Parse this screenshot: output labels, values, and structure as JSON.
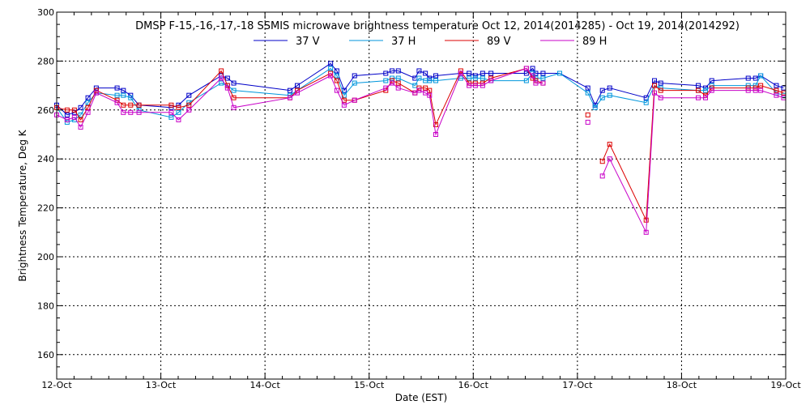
{
  "chart_data": {
    "type": "line",
    "title": "DMSP F-15,-16,-17,-18 SSMIS microwave brightness temperature Oct 12, 2014(2014285) - Oct 19, 2014(2014292)",
    "xlabel": "Date (EST)",
    "ylabel": "Brightness Temperature, Deg K",
    "xlim": [
      0,
      7
    ],
    "ylim": [
      150,
      300
    ],
    "grid": true,
    "legend_position": "top",
    "x_tick_labels": [
      "12-Oct",
      "13-Oct",
      "14-Oct",
      "15-Oct",
      "16-Oct",
      "17-Oct",
      "18-Oct",
      "19-Oct"
    ],
    "y_ticks": [
      160,
      180,
      200,
      220,
      240,
      260,
      280,
      300
    ],
    "series": [
      {
        "name": "37 V",
        "color": "#0000c8",
        "x": [
          0.0,
          0.1,
          0.17,
          0.23,
          0.3,
          0.38,
          0.58,
          0.64,
          0.71,
          0.79,
          1.1,
          1.17,
          1.27,
          1.58,
          1.64,
          1.7,
          2.24,
          2.31,
          2.63,
          2.69,
          2.76,
          2.86,
          3.16,
          3.22,
          3.28,
          3.44,
          3.48,
          3.54,
          3.58,
          3.64,
          3.88,
          3.96,
          4.02,
          4.09,
          4.17,
          4.51,
          4.57,
          4.6,
          4.67,
          4.83,
          5.1,
          5.17,
          5.24,
          5.31,
          5.66,
          5.74,
          5.8,
          6.16,
          6.23,
          6.29,
          6.64,
          6.71,
          6.76,
          6.91,
          6.98
        ],
        "y": [
          262,
          258,
          259,
          261,
          265,
          269,
          269,
          268,
          266,
          262,
          261,
          262,
          266,
          274,
          273,
          271,
          268,
          270,
          279,
          276,
          268,
          274,
          275,
          276,
          276,
          273,
          276,
          275,
          273,
          274,
          275,
          275,
          274,
          275,
          275,
          275,
          277,
          275,
          275,
          275,
          269,
          262,
          268,
          269,
          265,
          272,
          271,
          270,
          269,
          272,
          273,
          273,
          274,
          270,
          269
        ]
      },
      {
        "name": "37 H",
        "color": "#0096dc",
        "x": [
          0.0,
          0.1,
          0.17,
          0.23,
          0.3,
          0.38,
          0.58,
          0.64,
          0.71,
          0.79,
          1.1,
          1.17,
          1.27,
          1.58,
          1.64,
          1.7,
          2.24,
          2.31,
          2.63,
          2.69,
          2.76,
          2.86,
          3.16,
          3.22,
          3.28,
          3.44,
          3.48,
          3.54,
          3.58,
          3.64,
          3.88,
          3.96,
          4.02,
          4.09,
          4.17,
          4.51,
          4.57,
          4.6,
          4.67,
          4.83,
          5.1,
          5.17,
          5.24,
          5.31,
          5.66,
          5.74,
          5.8,
          6.16,
          6.23,
          6.29,
          6.64,
          6.71,
          6.76,
          6.91,
          6.98
        ],
        "y": [
          261,
          255,
          256,
          258,
          263,
          267,
          266,
          266,
          265,
          260,
          257,
          259,
          263,
          271,
          270,
          268,
          266,
          268,
          277,
          274,
          266,
          271,
          272,
          273,
          273,
          270,
          273,
          272,
          272,
          272,
          273,
          273,
          273,
          273,
          272,
          272,
          275,
          273,
          273,
          275,
          267,
          261,
          265,
          266,
          263,
          270,
          269,
          268,
          268,
          270,
          270,
          270,
          274,
          267,
          266
        ]
      },
      {
        "name": "89 V",
        "color": "#dc0000",
        "x": [
          0.0,
          0.1,
          0.17,
          0.23,
          0.3,
          0.38,
          0.58,
          0.64,
          0.71,
          0.79,
          1.1,
          1.17,
          1.27,
          1.58,
          1.64,
          1.7,
          2.24,
          2.31,
          2.63,
          2.69,
          2.76,
          2.86,
          3.16,
          3.22,
          3.28,
          3.44,
          3.48,
          3.54,
          3.58,
          3.64,
          3.88,
          3.96,
          4.02,
          4.09,
          4.17,
          4.51,
          4.57,
          4.6,
          4.67,
          4.83,
          5.1,
          5.17,
          5.24,
          5.31,
          5.66,
          5.74,
          5.8,
          6.16,
          6.23,
          6.29,
          6.64,
          6.71,
          6.76,
          6.91,
          6.98
        ],
        "y": [
          261,
          260,
          260,
          256,
          261,
          268,
          264,
          262,
          262,
          262,
          262,
          261,
          262,
          276,
          270,
          265,
          265,
          268,
          275,
          272,
          264,
          264,
          268,
          272,
          271,
          267,
          269,
          269,
          268,
          254,
          276,
          271,
          271,
          271,
          273,
          277,
          273,
          272,
          271,
          null,
          258,
          null,
          239,
          246,
          215,
          270,
          268,
          268,
          266,
          269,
          269,
          269,
          270,
          268,
          267
        ]
      },
      {
        "name": "89 H",
        "color": "#c800c8",
        "x": [
          0.0,
          0.1,
          0.17,
          0.23,
          0.3,
          0.38,
          0.58,
          0.64,
          0.71,
          0.79,
          1.1,
          1.17,
          1.27,
          1.58,
          1.64,
          1.7,
          2.24,
          2.31,
          2.63,
          2.69,
          2.76,
          2.86,
          3.16,
          3.22,
          3.28,
          3.44,
          3.48,
          3.54,
          3.58,
          3.64,
          3.88,
          3.96,
          4.02,
          4.09,
          4.17,
          4.51,
          4.57,
          4.6,
          4.67,
          4.83,
          5.1,
          5.17,
          5.24,
          5.31,
          5.66,
          5.74,
          5.8,
          6.16,
          6.23,
          6.29,
          6.64,
          6.71,
          6.76,
          6.91,
          6.98
        ],
        "y": [
          258,
          256,
          257,
          253,
          259,
          267,
          263,
          259,
          259,
          259,
          259,
          256,
          260,
          273,
          269,
          261,
          265,
          267,
          274,
          268,
          262,
          264,
          269,
          271,
          269,
          267,
          268,
          267,
          266,
          250,
          275,
          270,
          270,
          270,
          272,
          277,
          274,
          271,
          271,
          null,
          255,
          null,
          233,
          240,
          210,
          267,
          265,
          265,
          265,
          268,
          268,
          268,
          268,
          266,
          265
        ]
      }
    ]
  }
}
